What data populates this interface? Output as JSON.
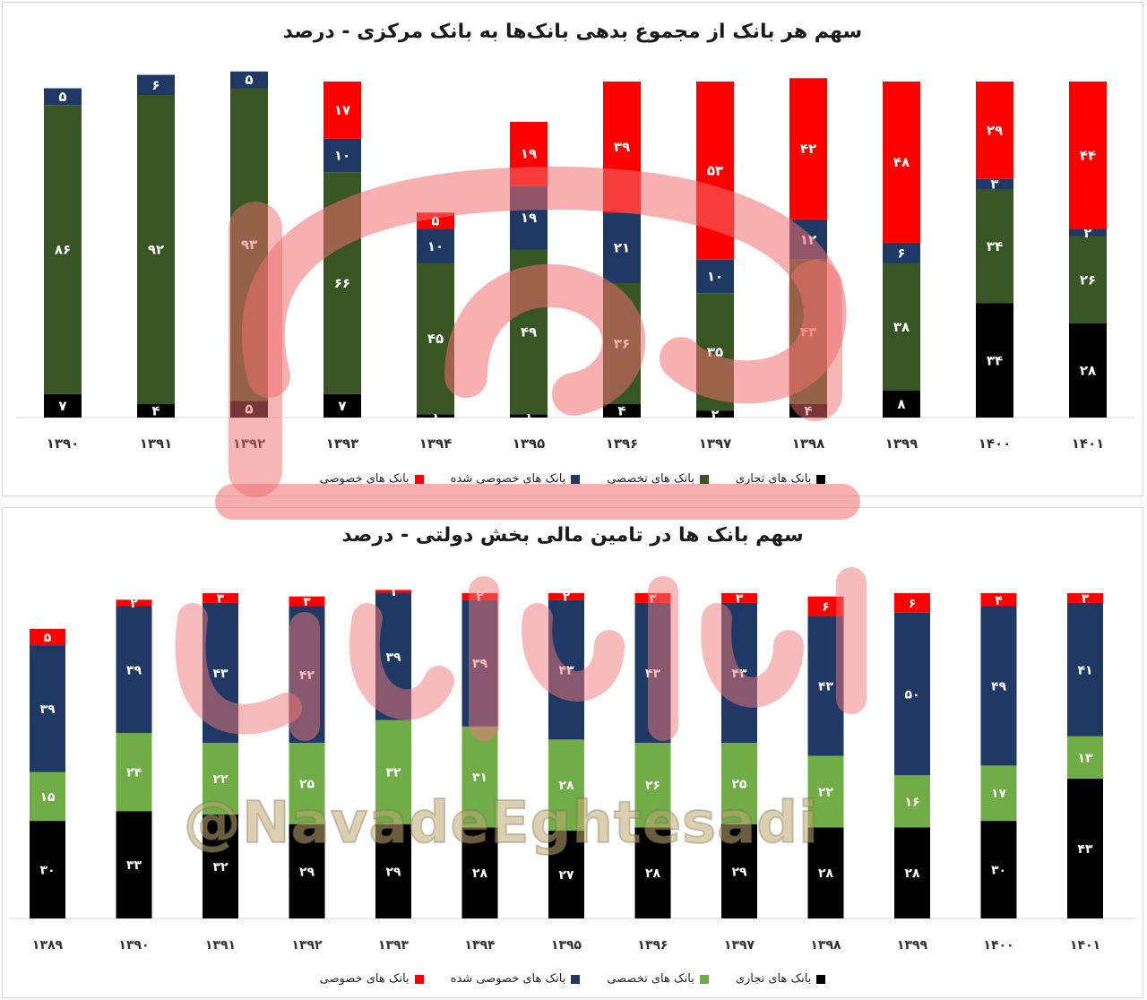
{
  "colors": {
    "tejari": "#000000",
    "takhassosi_top": "#375623",
    "takhassosi_bottom": "#70AD47",
    "khosoosi_shode": "#1F3864",
    "khosoosi": "#FF0000"
  },
  "watermark": {
    "handle": "@NavadeEghtesadi",
    "logo_icon": "navad-logo-icon"
  },
  "chart_data": [
    {
      "type": "bar",
      "stacked": true,
      "title": "سهم هر بانک از مجموع بدهی بانک‌ها به بانک مرکزی - درصد",
      "categories": [
        "۱۳۹۰",
        "۱۳۹۱",
        "۱۳۹۲",
        "۱۳۹۳",
        "۱۳۹۴",
        "۱۳۹۵",
        "۱۳۹۶",
        "۱۳۹۷",
        "۱۳۹۸",
        "۱۳۹۹",
        "۱۴۰۰",
        "۱۴۰۱"
      ],
      "series": [
        {
          "name": "بانک های تجاری",
          "color": "#000000",
          "values": [
            7,
            4,
            5,
            7,
            1,
            1,
            4,
            2,
            4,
            8,
            34,
            28
          ],
          "labels": [
            "۷",
            "۴",
            "۵",
            "۷",
            "۱",
            "۱",
            "۴",
            "۲",
            "۴",
            "۸",
            "۳۴",
            "۲۸"
          ]
        },
        {
          "name": "بانک های تخصصی",
          "color": "#375623",
          "values": [
            86,
            92,
            93,
            66,
            45,
            49,
            36,
            35,
            43,
            38,
            34,
            26
          ],
          "labels": [
            "۸۶",
            "۹۲",
            "۹۳",
            "۶۶",
            "۴۵",
            "۴۹",
            "۳۶",
            "۳۵",
            "۴۳",
            "۳۸",
            "۳۴",
            "۲۶"
          ]
        },
        {
          "name": "بانک های خصوصی شده",
          "color": "#1F3864",
          "values": [
            5,
            6,
            5,
            10,
            10,
            19,
            21,
            10,
            12,
            6,
            3,
            2
          ],
          "labels": [
            "۵",
            "۶",
            "۵",
            "۱۰",
            "۱۰",
            "۱۹",
            "۲۱",
            "۱۰",
            "۱۲",
            "۶",
            "۳",
            "۲"
          ]
        },
        {
          "name": "بانک های خصوصی",
          "color": "#FF0000",
          "values": [
            0,
            0,
            0,
            17,
            5,
            19,
            39,
            53,
            42,
            48,
            29,
            44
          ],
          "labels": [
            "",
            "",
            "",
            "۱۷",
            "۵",
            "۱۹",
            "۳۹",
            "۵۳",
            "۴۲",
            "۴۸",
            "۲۹",
            "۴۴"
          ]
        }
      ],
      "legend_order": [
        "بانک های تجاری",
        "بانک های تخصصی",
        "بانک های خصوصی شده",
        "بانک های خصوصی"
      ],
      "legend": "bottom",
      "grid": false
    },
    {
      "type": "bar",
      "stacked": true,
      "title": "سهم بانک ها در تامین مالی بخش دولتی  - درصد",
      "categories": [
        "۱۳۸۹",
        "۱۳۹۰",
        "۱۳۹۱",
        "۱۳۹۲",
        "۱۳۹۳",
        "۱۳۹۴",
        "۱۳۹۵",
        "۱۳۹۶",
        "۱۳۹۷",
        "۱۳۹۸",
        "۱۳۹۹",
        "۱۴۰۰",
        "۱۴۰۱"
      ],
      "series": [
        {
          "name": "بانک های تجاری",
          "color": "#000000",
          "values": [
            30,
            33,
            32,
            29,
            29,
            28,
            27,
            28,
            29,
            28,
            28,
            30,
            43
          ],
          "labels": [
            "۳۰",
            "۳۳",
            "۳۲",
            "۲۹",
            "۲۹",
            "۲۸",
            "۲۷",
            "۲۸",
            "۲۹",
            "۲۸",
            "۲۸",
            "۳۰",
            "۴۳"
          ]
        },
        {
          "name": "بانک های تخصصی",
          "color": "#70AD47",
          "values": [
            15,
            24,
            22,
            25,
            32,
            31,
            28,
            26,
            25,
            22,
            16,
            17,
            13
          ],
          "labels": [
            "۱۵",
            "۲۴",
            "۲۲",
            "۲۵",
            "۳۲",
            "۳۱",
            "۲۸",
            "۲۶",
            "۲۵",
            "۲۲",
            "۱۶",
            "۱۷",
            "۱۳"
          ]
        },
        {
          "name": "بانک های خصوصی شده",
          "color": "#1F3864",
          "values": [
            39,
            39,
            43,
            42,
            39,
            39,
            43,
            43,
            43,
            43,
            50,
            49,
            41
          ],
          "labels": [
            "۳۹",
            "۳۹",
            "۴۳",
            "۴۲",
            "۳۹",
            "۳۹",
            "۴۳",
            "۴۳",
            "۴۳",
            "۴۳",
            "۵۰",
            "۴۹",
            "۴۱"
          ]
        },
        {
          "name": "بانک های خصوصی",
          "color": "#FF0000",
          "values": [
            5,
            2,
            3,
            3,
            1,
            2,
            2,
            3,
            3,
            6,
            6,
            4,
            3
          ],
          "labels": [
            "۵",
            "۲",
            "۳",
            "۳",
            "۱",
            "۲",
            "۲",
            "۳",
            "۳",
            "۶",
            "۶",
            "۴",
            "۳"
          ]
        }
      ],
      "legend_order": [
        "بانک های تجاری",
        "بانک های تخصصی",
        "بانک های خصوصی شده",
        "بانک های خصوصی"
      ],
      "legend": "bottom",
      "grid": false
    }
  ]
}
